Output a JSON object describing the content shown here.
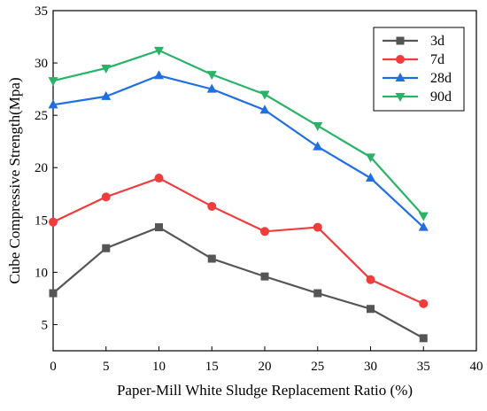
{
  "chart_data": {
    "type": "line",
    "xlabel": "Paper-Mill White Sludge Replacement Ratio (%)",
    "ylabel": "Cube Compressive Strength(Mpa)",
    "xlim": [
      0,
      40
    ],
    "ylim": [
      2.5,
      35
    ],
    "x_ticks": [
      "0",
      "5",
      "10",
      "15",
      "20",
      "25",
      "30",
      "35",
      "40"
    ],
    "y_ticks": [
      "5",
      "10",
      "15",
      "20",
      "25",
      "30",
      "35"
    ],
    "x": [
      0,
      5,
      10,
      15,
      20,
      25,
      30,
      35
    ],
    "grid": false,
    "legend_position": "top-right",
    "series": [
      {
        "name": "3d",
        "color": "#555555",
        "marker": "square",
        "values": [
          8.0,
          12.3,
          14.3,
          11.3,
          9.6,
          8.0,
          6.5,
          3.7
        ]
      },
      {
        "name": "7d",
        "color": "#f03c3c",
        "marker": "circle",
        "values": [
          14.8,
          17.2,
          19.0,
          16.3,
          13.9,
          14.3,
          9.3,
          7.0
        ]
      },
      {
        "name": "28d",
        "color": "#1f6fe0",
        "marker": "triangle-up",
        "values": [
          26.0,
          26.8,
          28.8,
          27.5,
          25.5,
          22.0,
          19.0,
          14.3
        ]
      },
      {
        "name": "90d",
        "color": "#2ab366",
        "marker": "triangle-down",
        "values": [
          28.3,
          29.5,
          31.2,
          28.9,
          27.0,
          24.0,
          21.0,
          15.4
        ]
      }
    ]
  }
}
